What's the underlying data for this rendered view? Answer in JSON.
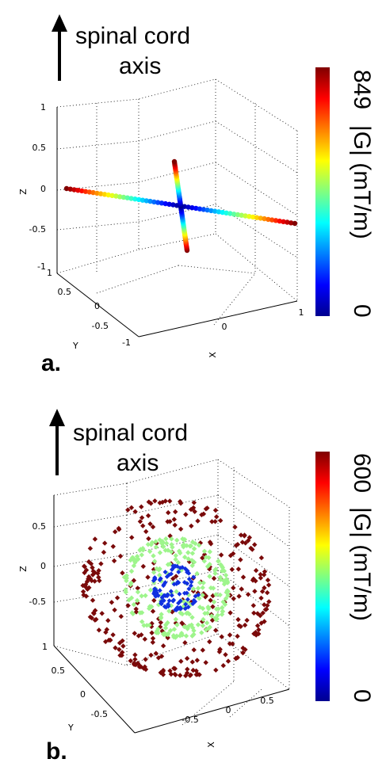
{
  "chart_data": [
    {
      "panel_label": "a.",
      "type": "scatter3d",
      "annotation": "spinal cord axis",
      "annotation_lines": [
        "spinal cord",
        "axis"
      ],
      "colorbar": {
        "min_label": "0",
        "max_label": "849",
        "label": "|G| (mT/m)",
        "range": [
          0,
          849
        ]
      },
      "axes": {
        "x": {
          "label": "X",
          "ticks": [
            "0",
            "1"
          ],
          "range": [
            -1,
            1
          ]
        },
        "y": {
          "label": "Y",
          "ticks": [
            "-1",
            "-0.5",
            "0",
            "0.5",
            "1"
          ],
          "range": [
            -1,
            1
          ]
        },
        "z": {
          "label": "Z",
          "ticks": [
            "-1",
            "-0.5",
            "0",
            "0.5",
            "1"
          ],
          "range": [
            -1,
            1
          ]
        }
      },
      "grid": true,
      "series": [
        {
          "axis_line": "x",
          "points": [
            [
              -1,
              0,
              0
            ],
            [
              -0.5,
              0,
              0
            ],
            [
              0,
              0,
              0
            ],
            [
              0.5,
              0,
              0
            ],
            [
              1,
              0,
              0
            ]
          ],
          "G": [
            849,
            420,
            0,
            420,
            849
          ]
        },
        {
          "axis_line": "y",
          "points": [
            [
              0,
              -1,
              0
            ],
            [
              0,
              -0.5,
              0
            ],
            [
              0,
              0,
              0
            ],
            [
              0,
              0.5,
              0
            ],
            [
              0,
              1,
              0
            ]
          ],
          "G": [
            849,
            420,
            0,
            420,
            849
          ]
        }
      ]
    },
    {
      "panel_label": "b.",
      "type": "scatter3d",
      "annotation": "spinal cord axis",
      "annotation_lines": [
        "spinal cord",
        "axis"
      ],
      "colorbar": {
        "min_label": "0",
        "max_label": "600",
        "label": "|G| (mT/m)",
        "range": [
          0,
          600
        ]
      },
      "axes": {
        "x": {
          "label": "X",
          "ticks": [
            "-0.5",
            "0",
            "0.5"
          ],
          "range": [
            -0.8,
            0.8
          ]
        },
        "y": {
          "label": "Y",
          "ticks": [
            "-0.5",
            "0",
            "0.5",
            "1"
          ],
          "range": [
            -0.8,
            1
          ]
        },
        "z": {
          "label": "Z",
          "ticks": [
            "-0.5",
            "0",
            "0.5"
          ],
          "range": [
            -0.8,
            0.8
          ]
        }
      },
      "grid": true,
      "shells": [
        {
          "radius": 0.2,
          "G": 100,
          "color": "#1030e0"
        },
        {
          "radius": 0.45,
          "G": 300,
          "color": "#9ef58c"
        },
        {
          "radius": 0.8,
          "G": 600,
          "color": "#7a0a0a"
        }
      ]
    }
  ]
}
